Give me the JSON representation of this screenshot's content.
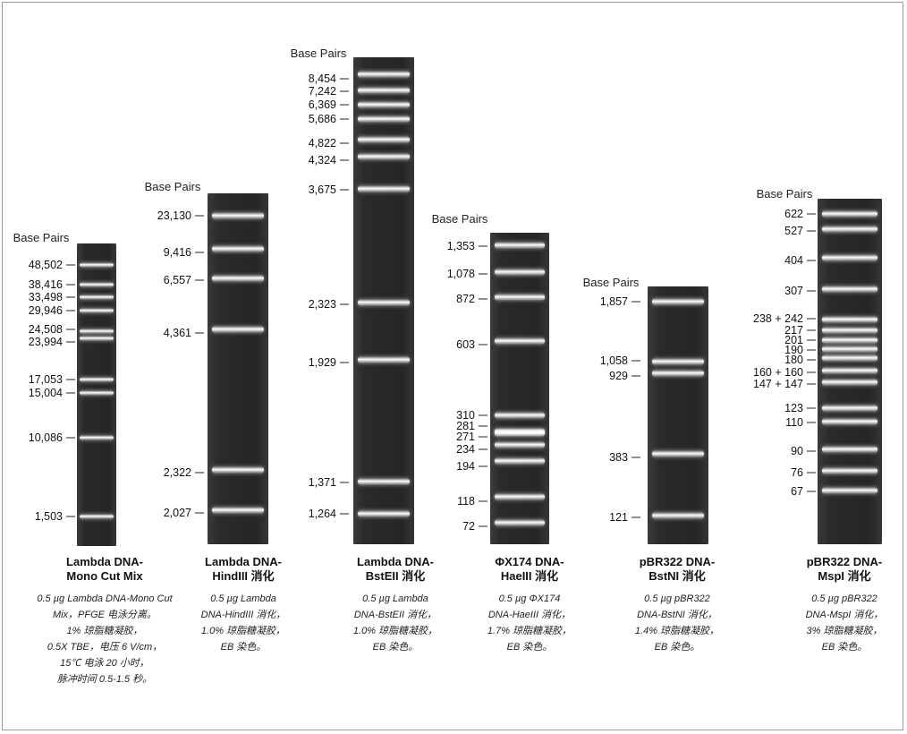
{
  "base_pairs_label": "Base Pairs",
  "panels": [
    {
      "name_lines": [
        "Lambda DNA-",
        "Mono Cut Mix"
      ],
      "desc_lines": [
        "0.5 µg Lambda DNA-Mono Cut",
        "Mix，PFGE 电泳分离。",
        "1% 琼脂糖凝胶，",
        "0.5X TBE，电压 6 V/cm，",
        "15℃ 电泳 20 小时，",
        "脉冲时间 0.5-1.5 秒。"
      ],
      "bands": [
        "48,502",
        "38,416",
        "33,498",
        "29,946",
        "24,508",
        "23,994",
        "17,053",
        "15,004",
        "10,086",
        "1,503"
      ]
    },
    {
      "name_lines": [
        "Lambda DNA-",
        "HindIII 消化"
      ],
      "desc_lines": [
        "0.5 µg Lambda",
        "DNA-HindIII 消化，",
        "1.0% 琼脂糖凝胶，",
        "EB 染色。"
      ],
      "bands": [
        "23,130",
        "9,416",
        "6,557",
        "4,361",
        "2,322",
        "2,027"
      ]
    },
    {
      "name_lines": [
        "Lambda DNA-",
        "BstEII 消化"
      ],
      "desc_lines": [
        "0.5 µg Lambda",
        "DNA-BstEII 消化，",
        "1.0% 琼脂糖凝胶，",
        "EB 染色。"
      ],
      "bands": [
        "8,454",
        "7,242",
        "6,369",
        "5,686",
        "4,822",
        "4,324",
        "3,675",
        "2,323",
        "1,929",
        "1,371",
        "1,264"
      ]
    },
    {
      "name_lines": [
        "ΦX174 DNA-",
        "HaeIII 消化"
      ],
      "desc_lines": [
        "0.5 µg ΦX174",
        "DNA-HaeIII 消化，",
        "1.7% 琼脂糖凝胶，",
        "EB 染色。"
      ],
      "bands": [
        "1,353",
        "1,078",
        "872",
        "603",
        "310",
        "281",
        "271",
        "234",
        "194",
        "118",
        "72"
      ]
    },
    {
      "name_lines": [
        "pBR322 DNA-",
        "BstNI 消化"
      ],
      "desc_lines": [
        "0.5 µg pBR322",
        "DNA-BstNI 消化，",
        "1.4% 琼脂糖凝胶，",
        "EB 染色。"
      ],
      "bands": [
        "1,857",
        "1,058",
        "929",
        "383",
        "121"
      ]
    },
    {
      "name_lines": [
        "pBR322 DNA-",
        "MspI 消化"
      ],
      "desc_lines": [
        "0.5 µg pBR322",
        "DNA-MspI 消化，",
        "3% 琼脂糖凝胶，",
        "EB 染色。"
      ],
      "bands": [
        "622",
        "527",
        "404",
        "307",
        "238 + 242",
        "217",
        "201",
        "190",
        "180",
        "160 + 160",
        "147 + 147",
        "123",
        "110",
        "90",
        "76",
        "67"
      ]
    }
  ]
}
